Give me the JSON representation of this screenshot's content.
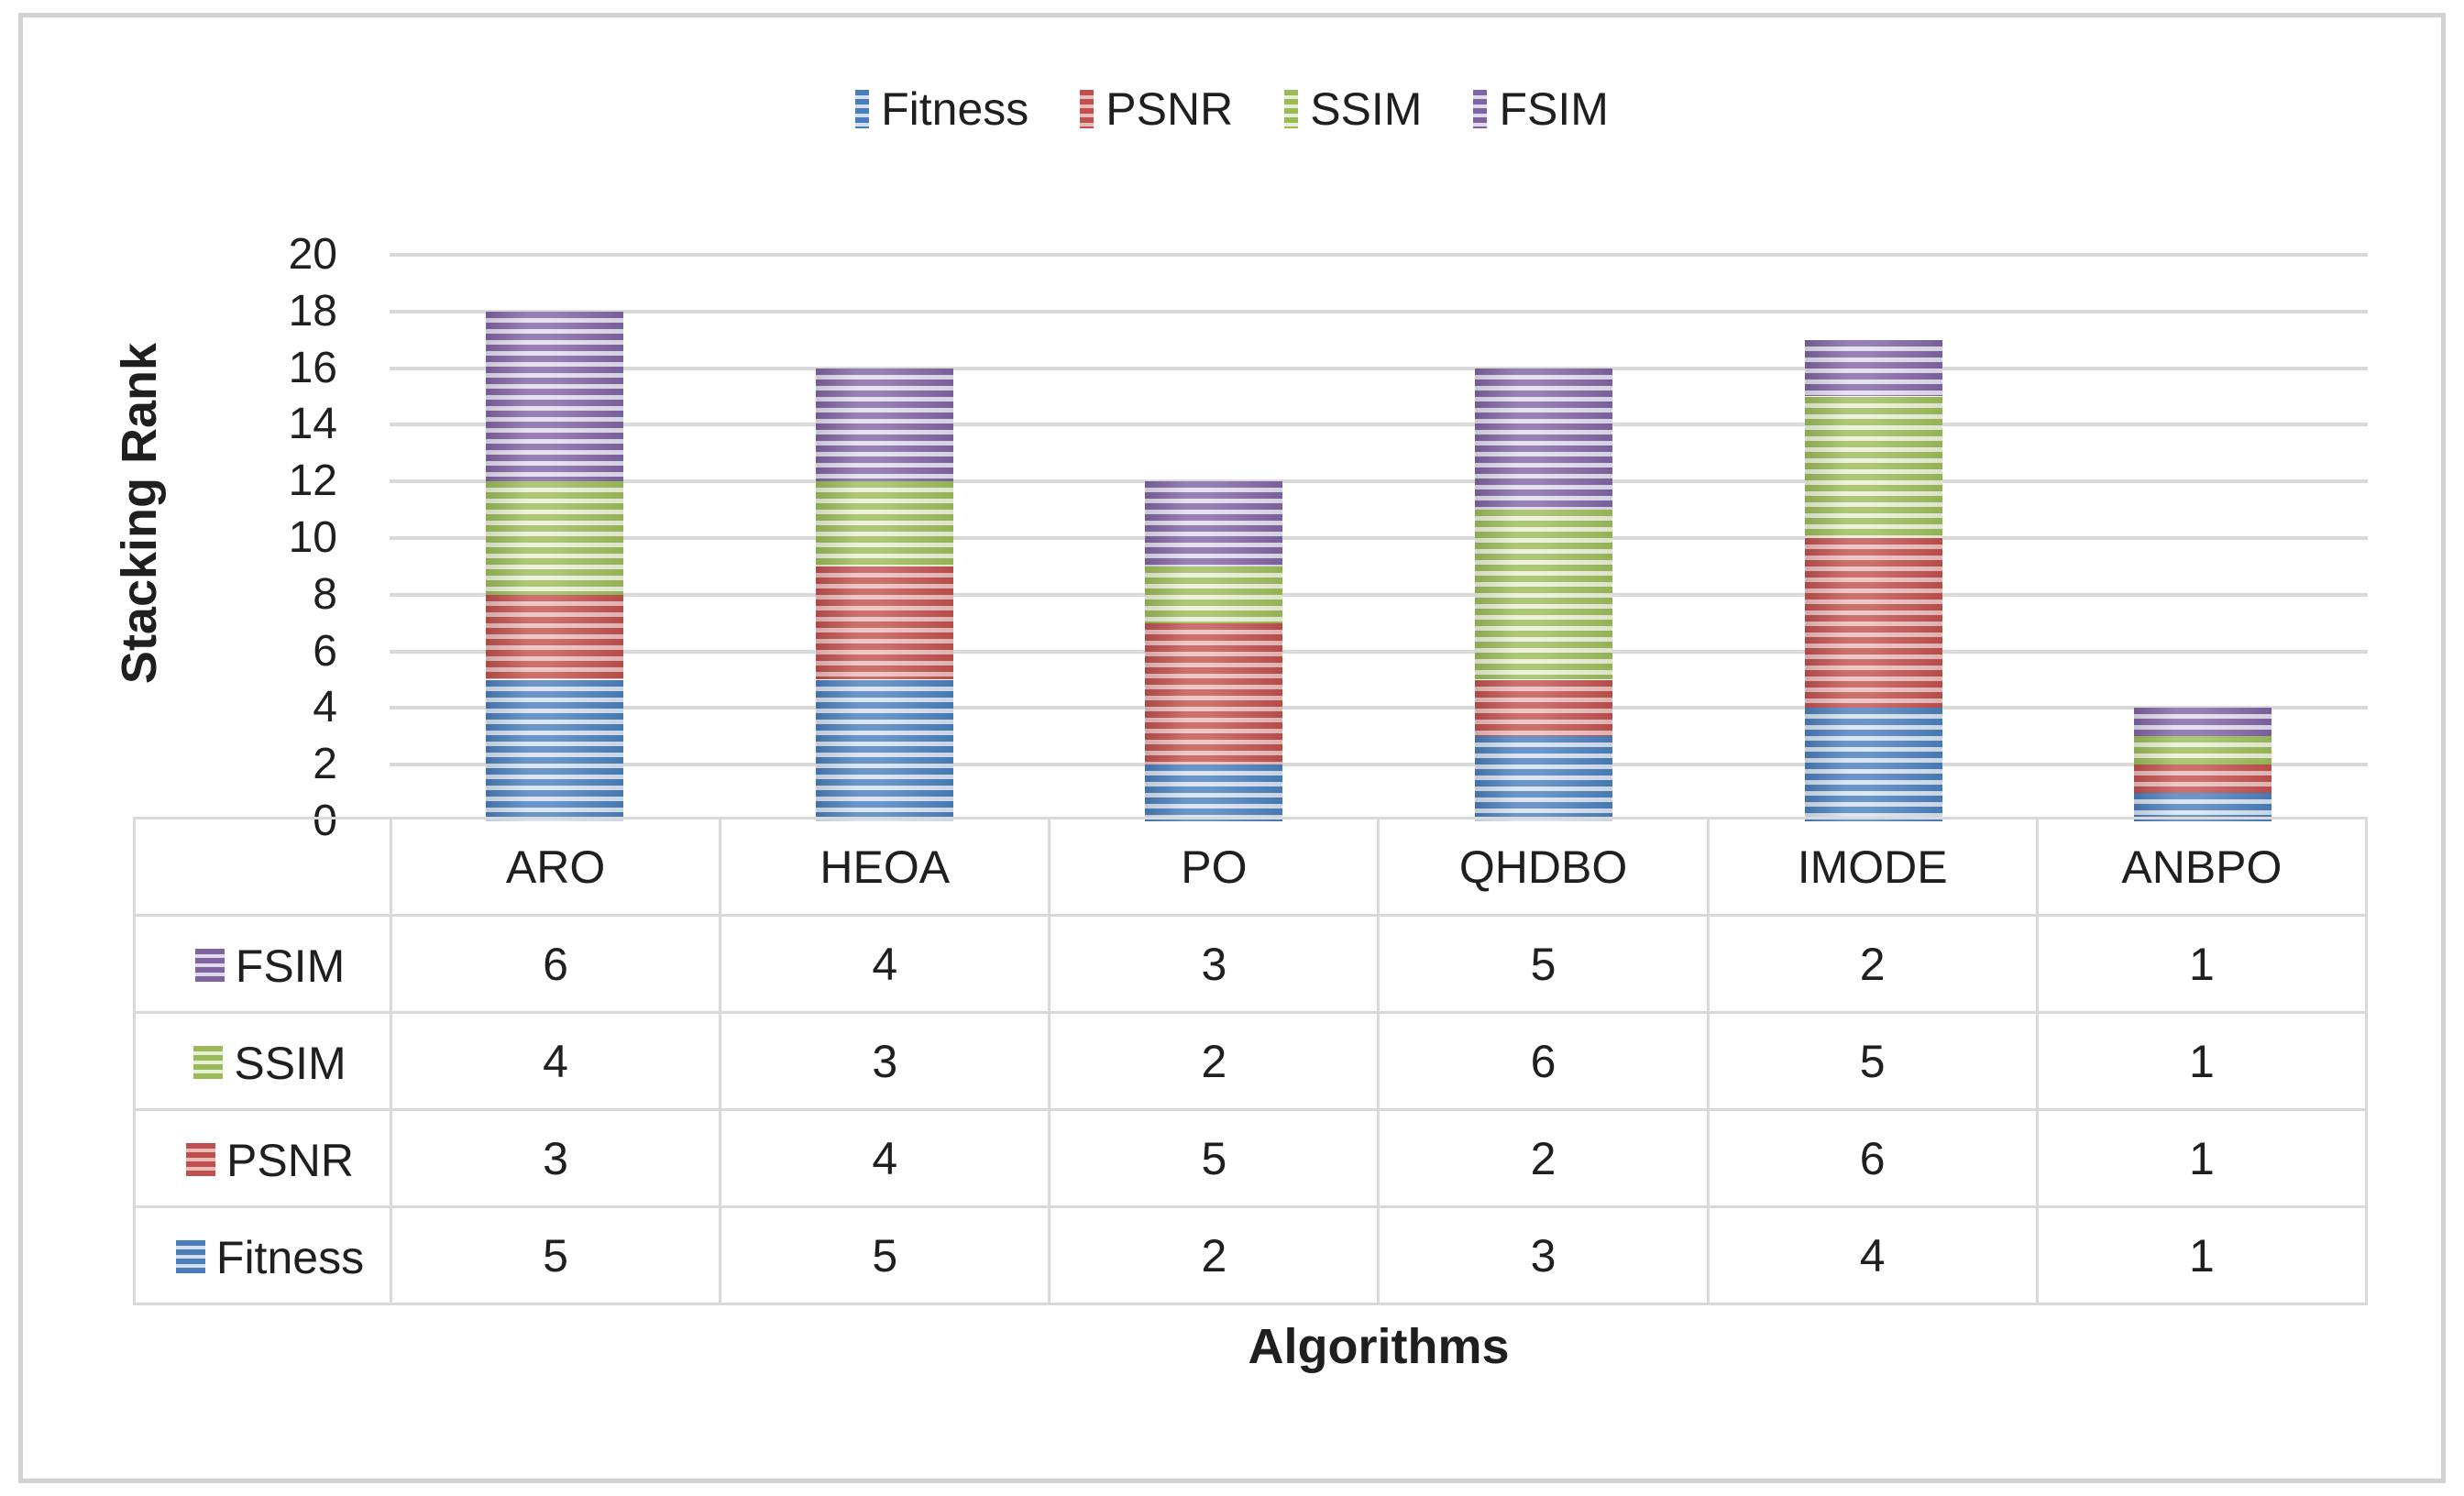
{
  "chart_data": {
    "type": "bar",
    "stacked": true,
    "categories": [
      "ARO",
      "HEOA",
      "PO",
      "QHDBO",
      "IMODE",
      "ANBPO"
    ],
    "series": [
      {
        "name": "Fitness",
        "color": "#4a7ebb",
        "light": "#d4e0ef",
        "values": [
          5,
          5,
          2,
          3,
          4,
          1
        ]
      },
      {
        "name": "PSNR",
        "color": "#c0504d",
        "light": "#e9bcbb",
        "values": [
          3,
          4,
          5,
          2,
          6,
          1
        ]
      },
      {
        "name": "SSIM",
        "color": "#9bbb59",
        "light": "#e9efd7",
        "values": [
          4,
          3,
          2,
          6,
          5,
          1
        ]
      },
      {
        "name": "FSIM",
        "color": "#8064a2",
        "light": "#e0dbec",
        "values": [
          6,
          4,
          3,
          5,
          2,
          1
        ]
      }
    ],
    "totals": [
      18,
      16,
      12,
      16,
      17,
      4
    ],
    "ylabel": "Stacking Rank",
    "xlabel": "Algorithms",
    "ylim": [
      0,
      20
    ],
    "yticks": [
      0,
      2,
      4,
      6,
      8,
      10,
      12,
      14,
      16,
      18,
      20
    ],
    "grid": true,
    "legend_position": "top",
    "bar_texture": "horizontal-stripes",
    "gridline_color": "#d9d9d9",
    "frame_color": "#d2d2d2"
  },
  "data_table": {
    "column_headers": [
      "ARO",
      "HEOA",
      "PO",
      "QHDBO",
      "IMODE",
      "ANBPO"
    ],
    "rows": [
      {
        "label": "FSIM",
        "values": [
          6,
          4,
          3,
          5,
          2,
          1
        ]
      },
      {
        "label": "SSIM",
        "values": [
          4,
          3,
          2,
          6,
          5,
          1
        ]
      },
      {
        "label": "PSNR",
        "values": [
          3,
          4,
          5,
          2,
          6,
          1
        ]
      },
      {
        "label": "Fitness",
        "values": [
          5,
          5,
          2,
          3,
          4,
          1
        ]
      }
    ]
  }
}
